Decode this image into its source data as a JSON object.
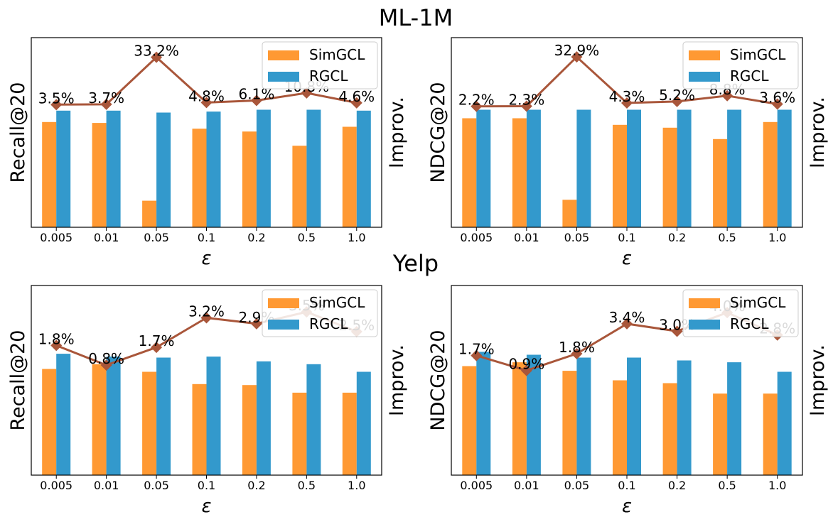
{
  "figure": {
    "title_top": "ML-1M",
    "title_bottom": "Yelp"
  },
  "colors": {
    "simgcl": "#ff9933",
    "rgcl": "#3399cc",
    "improv_line": "#a9563a"
  },
  "chart_data": [
    {
      "type": "bar",
      "dataset": "ML-1M",
      "categories": [
        "0.005",
        "0.01",
        "0.05",
        "0.1",
        "0.2",
        "0.5",
        "1.0"
      ],
      "xlabel": "ε",
      "ylabel": "Recall@20",
      "y2label": "Improv.",
      "ylim": [
        0,
        1
      ],
      "legend_position": "upper right",
      "series": [
        {
          "name": "SimGCL",
          "values": [
            0.555,
            0.55,
            0.14,
            0.52,
            0.505,
            0.43,
            0.53
          ]
        },
        {
          "name": "RGCL",
          "values": [
            0.615,
            0.615,
            0.605,
            0.61,
            0.62,
            0.62,
            0.615
          ]
        }
      ],
      "improvement": {
        "labels": [
          "3.5%",
          "3.7%",
          "33.2%",
          "4.8%",
          "6.1%",
          "10.8%",
          "4.6%"
        ],
        "values": [
          3.5,
          3.7,
          33.2,
          4.8,
          6.1,
          10.8,
          4.6
        ],
        "y2lim": [
          -73.4,
          45.5
        ]
      }
    },
    {
      "type": "bar",
      "dataset": "ML-1M",
      "categories": [
        "0.005",
        "0.01",
        "0.05",
        "0.1",
        "0.2",
        "0.5",
        "1.0"
      ],
      "xlabel": "ε",
      "ylabel": "NDCG@20",
      "y2label": "Improv.",
      "ylim": [
        0,
        1
      ],
      "legend_position": "upper right",
      "series": [
        {
          "name": "SimGCL",
          "values": [
            0.575,
            0.575,
            0.145,
            0.54,
            0.525,
            0.465,
            0.555
          ]
        },
        {
          "name": "RGCL",
          "values": [
            0.62,
            0.62,
            0.62,
            0.62,
            0.62,
            0.62,
            0.62
          ]
        }
      ],
      "improvement": {
        "labels": [
          "2.2%",
          "2.3%",
          "32.9%",
          "4.3%",
          "5.2%",
          "8.8%",
          "3.6%"
        ],
        "values": [
          2.2,
          2.3,
          32.9,
          4.3,
          5.2,
          8.8,
          3.6
        ],
        "y2lim": [
          -73.0,
          44.9
        ]
      }
    },
    {
      "type": "bar",
      "dataset": "Yelp",
      "categories": [
        "0.005",
        "0.01",
        "0.05",
        "0.1",
        "0.2",
        "0.5",
        "1.0"
      ],
      "xlabel": "ε",
      "ylabel": "Recall@20",
      "y2label": "Improv.",
      "ylim": [
        0,
        1
      ],
      "legend_position": "upper right",
      "series": [
        {
          "name": "SimGCL",
          "values": [
            0.56,
            0.585,
            0.545,
            0.48,
            0.475,
            0.435,
            0.435
          ]
        },
        {
          "name": "RGCL",
          "values": [
            0.64,
            0.625,
            0.62,
            0.625,
            0.6,
            0.585,
            0.545
          ]
        }
      ],
      "improvement": {
        "labels": [
          "1.8%",
          "0.8%",
          "1.7%",
          "3.2%",
          "2.9%",
          "3.5%",
          "2.5%"
        ],
        "values": [
          1.8,
          0.8,
          1.7,
          3.2,
          2.9,
          3.5,
          2.5
        ],
        "y2lim": [
          -4.78,
          4.84
        ]
      }
    },
    {
      "type": "bar",
      "dataset": "Yelp",
      "categories": [
        "0.005",
        "0.01",
        "0.05",
        "0.1",
        "0.2",
        "0.5",
        "1.0"
      ],
      "xlabel": "ε",
      "ylabel": "NDCG@20",
      "y2label": "Improv.",
      "ylim": [
        0,
        1
      ],
      "legend_position": "upper right",
      "series": [
        {
          "name": "SimGCL",
          "values": [
            0.575,
            0.595,
            0.55,
            0.5,
            0.485,
            0.43,
            0.43
          ]
        },
        {
          "name": "RGCL",
          "values": [
            0.65,
            0.635,
            0.62,
            0.62,
            0.605,
            0.595,
            0.545
          ]
        }
      ],
      "improvement": {
        "labels": [
          "1.7%",
          "0.9%",
          "1.8%",
          "3.4%",
          "3.0%",
          "4.0%",
          "2.8%"
        ],
        "values": [
          1.7,
          0.9,
          1.8,
          3.4,
          3.0,
          4.0,
          2.8
        ],
        "y2lim": [
          -4.7,
          5.45
        ]
      }
    }
  ]
}
